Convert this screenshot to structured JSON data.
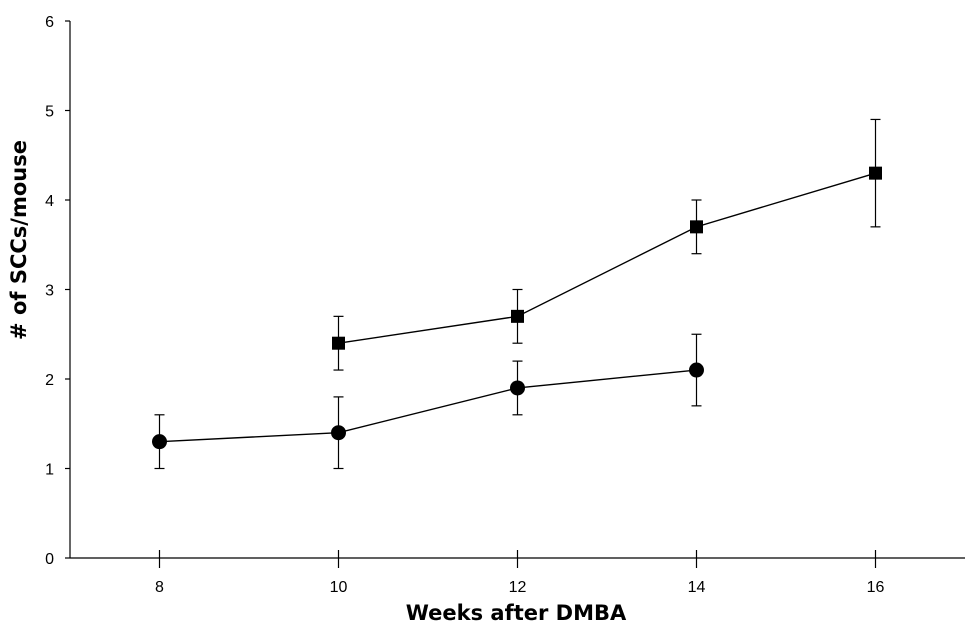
{
  "chart_data": {
    "type": "line",
    "title": "",
    "xlabel": "Weeks after DMBA",
    "ylabel": "# of SCCs/mouse",
    "xlim": [
      7,
      17
    ],
    "ylim": [
      0,
      6
    ],
    "x_ticks": [
      "8",
      "10",
      "12",
      "14",
      "16"
    ],
    "y_ticks": [
      "0",
      "1",
      "2",
      "3",
      "4",
      "5",
      "6"
    ],
    "grid": false,
    "legend": "none",
    "series": [
      {
        "marker": "square",
        "x": [
          10,
          12,
          14,
          16
        ],
        "y": [
          2.4,
          2.7,
          3.7,
          4.3
        ],
        "err_low": [
          2.1,
          2.4,
          3.4,
          3.7
        ],
        "err_high": [
          2.7,
          3.0,
          4.0,
          4.9
        ]
      },
      {
        "marker": "circle",
        "x": [
          8,
          10,
          12,
          14
        ],
        "y": [
          1.3,
          1.4,
          1.9,
          2.1
        ],
        "err_low": [
          1.0,
          1.0,
          1.6,
          1.7
        ],
        "err_high": [
          1.6,
          1.8,
          2.2,
          2.5
        ]
      }
    ],
    "colors": {
      "line": "#000000",
      "marker": "#000000",
      "axis": "#000000"
    }
  }
}
